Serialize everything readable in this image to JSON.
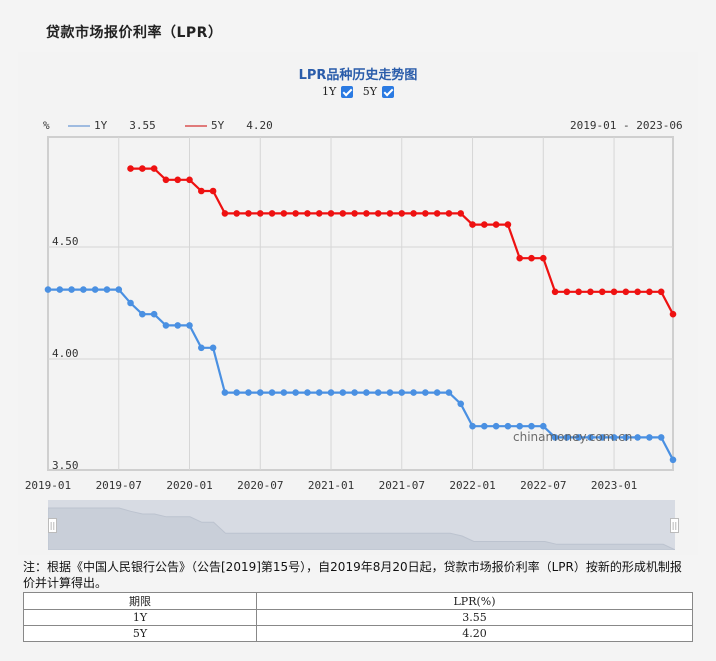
{
  "page": {
    "title": "贷款市场报价利率（LPR）"
  },
  "chart": {
    "title": "LPR品种历史走势图",
    "toggles": [
      {
        "label": "1Y",
        "checked": true
      },
      {
        "label": "5Y",
        "checked": true
      }
    ],
    "unit": "%",
    "legend": [
      {
        "name": "1Y",
        "value": "3.55",
        "color": "#4a90e2"
      },
      {
        "name": "5Y",
        "value": "4.20",
        "color": "#ee1111"
      }
    ],
    "range": "2019-01 - 2023-06",
    "watermark": "chinamoney.com.cn",
    "y_ticks": [
      "4.50",
      "4.00",
      "3.50"
    ],
    "x_ticks": [
      "2019-01",
      "2019-07",
      "2020-01",
      "2020-07",
      "2021-01",
      "2021-07",
      "2022-01",
      "2022-07",
      "2023-01"
    ]
  },
  "chart_data": {
    "type": "line",
    "title": "LPR品种历史走势图",
    "xlabel": "",
    "ylabel": "%",
    "ylim": [
      3.5,
      4.9
    ],
    "grid": true,
    "legend_position": "top-left",
    "x": [
      "2019-01",
      "2019-02",
      "2019-03",
      "2019-04",
      "2019-05",
      "2019-06",
      "2019-07",
      "2019-08",
      "2019-09",
      "2019-10",
      "2019-11",
      "2019-12",
      "2020-01",
      "2020-02",
      "2020-03",
      "2020-04",
      "2020-05",
      "2020-06",
      "2020-07",
      "2020-08",
      "2020-09",
      "2020-10",
      "2020-11",
      "2020-12",
      "2021-01",
      "2021-02",
      "2021-03",
      "2021-04",
      "2021-05",
      "2021-06",
      "2021-07",
      "2021-08",
      "2021-09",
      "2021-10",
      "2021-11",
      "2021-12",
      "2022-01",
      "2022-02",
      "2022-03",
      "2022-04",
      "2022-05",
      "2022-06",
      "2022-07",
      "2022-08",
      "2022-09",
      "2022-10",
      "2022-11",
      "2022-12",
      "2023-01",
      "2023-02",
      "2023-03",
      "2023-04",
      "2023-05",
      "2023-06"
    ],
    "series": [
      {
        "name": "1Y",
        "color": "#4a90e2",
        "values": [
          4.31,
          4.31,
          4.31,
          4.31,
          4.31,
          4.31,
          4.31,
          4.25,
          4.2,
          4.2,
          4.15,
          4.15,
          4.15,
          4.05,
          4.05,
          3.85,
          3.85,
          3.85,
          3.85,
          3.85,
          3.85,
          3.85,
          3.85,
          3.85,
          3.85,
          3.85,
          3.85,
          3.85,
          3.85,
          3.85,
          3.85,
          3.85,
          3.85,
          3.85,
          3.85,
          3.8,
          3.7,
          3.7,
          3.7,
          3.7,
          3.7,
          3.7,
          3.7,
          3.65,
          3.65,
          3.65,
          3.65,
          3.65,
          3.65,
          3.65,
          3.65,
          3.65,
          3.65,
          3.55
        ]
      },
      {
        "name": "5Y",
        "color": "#ee1111",
        "values": [
          null,
          null,
          null,
          null,
          null,
          null,
          null,
          4.85,
          4.85,
          4.85,
          4.8,
          4.8,
          4.8,
          4.75,
          4.75,
          4.65,
          4.65,
          4.65,
          4.65,
          4.65,
          4.65,
          4.65,
          4.65,
          4.65,
          4.65,
          4.65,
          4.65,
          4.65,
          4.65,
          4.65,
          4.65,
          4.65,
          4.65,
          4.65,
          4.65,
          4.65,
          4.6,
          4.6,
          4.6,
          4.6,
          4.45,
          4.45,
          4.45,
          4.3,
          4.3,
          4.3,
          4.3,
          4.3,
          4.3,
          4.3,
          4.3,
          4.3,
          4.3,
          4.2
        ]
      }
    ]
  },
  "note": "注：根据《中国人民银行公告》（公告[2019]第15号），自2019年8月20日起，贷款市场报价利率（LPR）按新的形成机制报价并计算得出。",
  "table": {
    "headers": [
      "期限",
      "LPR(%)"
    ],
    "rows": [
      [
        "1Y",
        "3.55"
      ],
      [
        "5Y",
        "4.20"
      ]
    ]
  }
}
